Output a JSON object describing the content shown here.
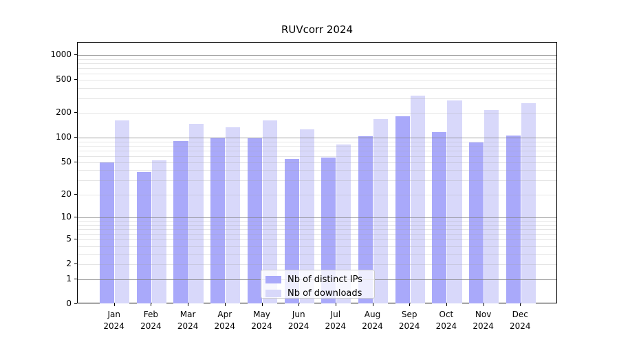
{
  "chart_data": {
    "type": "bar",
    "title": "RUVcorr 2024",
    "year_label": "2024",
    "categories": [
      "Jan",
      "Feb",
      "Mar",
      "Apr",
      "May",
      "Jun",
      "Jul",
      "Aug",
      "Sep",
      "Oct",
      "Nov",
      "Dec"
    ],
    "series": [
      {
        "name": "Nb of distinct IPs",
        "color": "#a9a9fa",
        "values": [
          50,
          38,
          92,
          100,
          98,
          55,
          57,
          104,
          182,
          118,
          88,
          106
        ]
      },
      {
        "name": "Nb of downloads",
        "color": "#d8d8fa",
        "values": [
          162,
          53,
          148,
          133,
          162,
          126,
          83,
          169,
          322,
          284,
          216,
          262
        ]
      }
    ],
    "yscale": "log1p",
    "y_ticks": [
      0,
      1,
      2,
      5,
      10,
      20,
      50,
      100,
      200,
      500,
      1000
    ],
    "ylim": [
      0,
      1411
    ],
    "xlabel": "",
    "ylabel": "",
    "grid": true,
    "legend_position": "lower center",
    "colors": {
      "major_grid": "#b0b0b0",
      "minor_grid": "#e9e9e9",
      "axis": "#000000",
      "background": "#ffffff"
    }
  }
}
